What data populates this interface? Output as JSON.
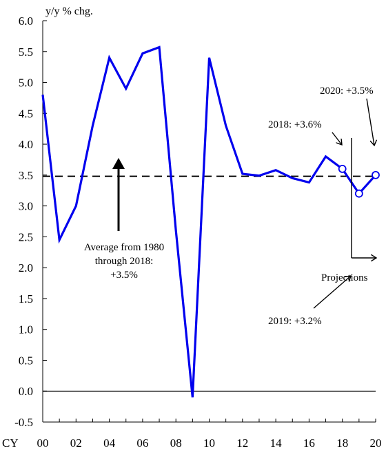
{
  "chart_data": {
    "type": "line",
    "ylabel": "y/y % chg.",
    "x_prefix": "CY",
    "x_tick_labels": [
      "00",
      "02",
      "04",
      "06",
      "08",
      "10",
      "12",
      "14",
      "16",
      "18",
      "20"
    ],
    "y_tick_labels": [
      "6.0",
      "5.5",
      "5.0",
      "4.5",
      "4.0",
      "3.5",
      "3.0",
      "2.5",
      "2.0",
      "1.5",
      "1.0",
      "0.5",
      "0.0",
      "-0.5"
    ],
    "ylim": [
      -0.5,
      6.0
    ],
    "xlim": [
      2000,
      2020
    ],
    "grid": false,
    "series": [
      {
        "color": "#0000ee",
        "x": [
          2000,
          2001,
          2002,
          2003,
          2004,
          2005,
          2006,
          2007,
          2008,
          2009,
          2010,
          2011,
          2012,
          2013,
          2014,
          2015,
          2016,
          2017,
          2018,
          2019,
          2020
        ],
        "values": [
          4.8,
          2.45,
          3.0,
          4.3,
          5.4,
          4.9,
          5.47,
          5.57,
          2.6,
          -0.1,
          5.4,
          4.3,
          3.52,
          3.49,
          3.58,
          3.45,
          3.38,
          3.8,
          3.6,
          3.2,
          3.5
        ]
      }
    ],
    "highlighted_points": [
      2018,
      2019,
      2020
    ],
    "reference_line": {
      "value": 3.48,
      "style": "dashed"
    },
    "annotations": {
      "average_line1": "Average from 1980",
      "average_line2": "through 2018:",
      "average_line3": "+3.5%",
      "label_2018": "2018: +3.6%",
      "label_2019": "2019: +3.2%",
      "label_2020": "2020: +3.5%",
      "projections": "Projections"
    }
  }
}
